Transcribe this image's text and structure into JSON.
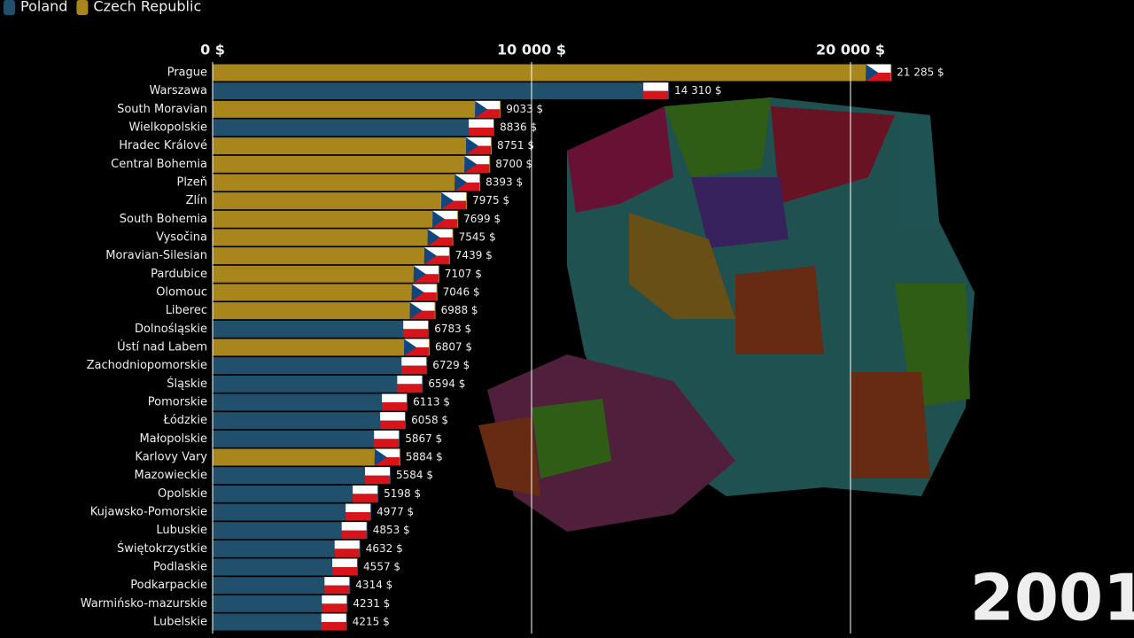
{
  "chart_data": {
    "type": "bar",
    "categories": [
      "Prague",
      "Warszawa",
      "South Moravian",
      "Wielkopolskie",
      "Hradec Králové",
      "Central Bohemia",
      "Plzeň",
      "Zlín",
      "South Bohemia",
      "Vysočina",
      "Moravian-Silesian",
      "Pardubice",
      "Olomouc",
      "Liberec",
      "Dolnośląskie",
      "Ústí nad Labem",
      "Zachodniopomorskie",
      "Śląskie",
      "Pomorskie",
      "Łódzkie",
      "Małopolskie",
      "Karlovy Vary",
      "Mazowieckie",
      "Opolskie",
      "Kujawsko-Pomorskie",
      "Lubuskie",
      "Świętokrzystkie",
      "Podlaskie",
      "Podkarpackie",
      "Warmińsko-mazurskie",
      "Lubelskie"
    ],
    "series": [
      {
        "name": "Poland",
        "color": "#21506d",
        "values": [
          null,
          14310,
          null,
          8836,
          null,
          null,
          null,
          null,
          null,
          null,
          null,
          null,
          null,
          null,
          6783,
          null,
          6729,
          6594,
          6113,
          6058,
          5867,
          null,
          5584,
          5198,
          4977,
          4853,
          4632,
          4557,
          4314,
          4231,
          4215
        ],
        "value_labels": [
          null,
          "14 310 $",
          null,
          "8836 $",
          null,
          null,
          null,
          null,
          null,
          null,
          null,
          null,
          null,
          null,
          "6783 $",
          null,
          "6729 $",
          "6594 $",
          "6113 $",
          "6058 $",
          "5867 $",
          null,
          "5584 $",
          "5198 $",
          "4977 $",
          "4853 $",
          "4632 $",
          "4557 $",
          "4314 $",
          "4231 $",
          "4215 $"
        ]
      },
      {
        "name": "Czech Republic",
        "color": "#a9861b",
        "values": [
          21285,
          null,
          9033,
          null,
          8751,
          8700,
          8393,
          7975,
          7699,
          7545,
          7439,
          7107,
          7046,
          6988,
          null,
          6807,
          null,
          null,
          null,
          null,
          null,
          5884,
          null,
          null,
          null,
          null,
          null,
          null,
          null,
          null,
          null
        ],
        "value_labels": [
          "21 285 $",
          null,
          "9033 $",
          null,
          "8751 $",
          "8700 $",
          "8393 $",
          "7975 $",
          "7699 $",
          "7545 $",
          "7439 $",
          "7107 $",
          "7046 $",
          "6988 $",
          null,
          "6807 $",
          null,
          null,
          null,
          null,
          null,
          "5884 $",
          null,
          null,
          null,
          null,
          null,
          null,
          null,
          null,
          null
        ]
      }
    ],
    "xlim": [
      0,
      28000
    ],
    "xticks": [
      {
        "value": 0,
        "label": "0 $"
      },
      {
        "value": 10000,
        "label": "10 000 $"
      },
      {
        "value": 20000,
        "label": "20 000 $"
      }
    ],
    "grid": true,
    "legend": "top-left",
    "annotation": "2001"
  }
}
